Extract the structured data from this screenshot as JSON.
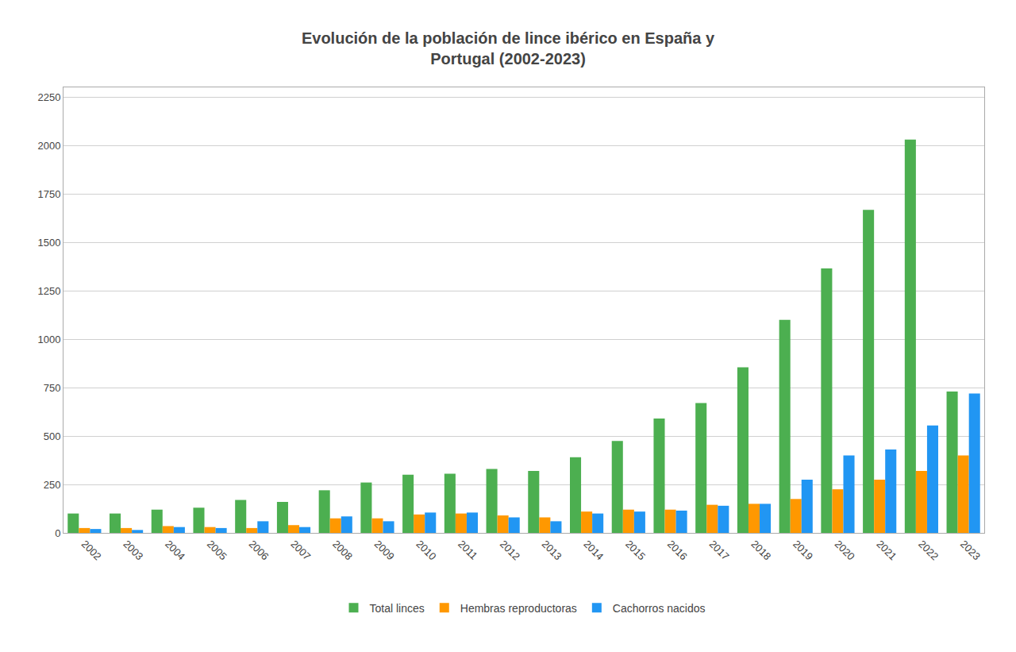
{
  "chart_data": {
    "type": "bar",
    "title": "Evolución de la población de lince ibérico en España y\nPortugal (2002-2023)",
    "categories": [
      "2002",
      "2003",
      "2004",
      "2005",
      "2006",
      "2007",
      "2008",
      "2009",
      "2010",
      "2011",
      "2012",
      "2013",
      "2014",
      "2015",
      "2016",
      "2017",
      "2018",
      "2019",
      "2020",
      "2021",
      "2022",
      "2023"
    ],
    "series": [
      {
        "name": "Total linces",
        "color": "#4caf50",
        "values": [
          100,
          100,
          120,
          130,
          170,
          160,
          220,
          260,
          300,
          305,
          330,
          320,
          390,
          475,
          590,
          670,
          855,
          1100,
          1365,
          1668,
          2030,
          730
        ]
      },
      {
        "name": "Hembras reproductoras",
        "color": "#ff9800",
        "values": [
          25,
          25,
          35,
          30,
          25,
          40,
          75,
          75,
          95,
          100,
          90,
          80,
          110,
          120,
          120,
          145,
          150,
          175,
          225,
          275,
          320,
          400
        ]
      },
      {
        "name": "Cachorros nacidos",
        "color": "#2196f3",
        "values": [
          20,
          15,
          30,
          25,
          60,
          30,
          85,
          60,
          105,
          105,
          80,
          60,
          100,
          110,
          115,
          140,
          150,
          275,
          400,
          430,
          555,
          720
        ]
      }
    ],
    "ylim": [
      0,
      2300
    ],
    "yticks": [
      0,
      250,
      500,
      750,
      1000,
      1250,
      1500,
      1750,
      2000,
      2250
    ],
    "grid": true,
    "legend": "bottom"
  }
}
